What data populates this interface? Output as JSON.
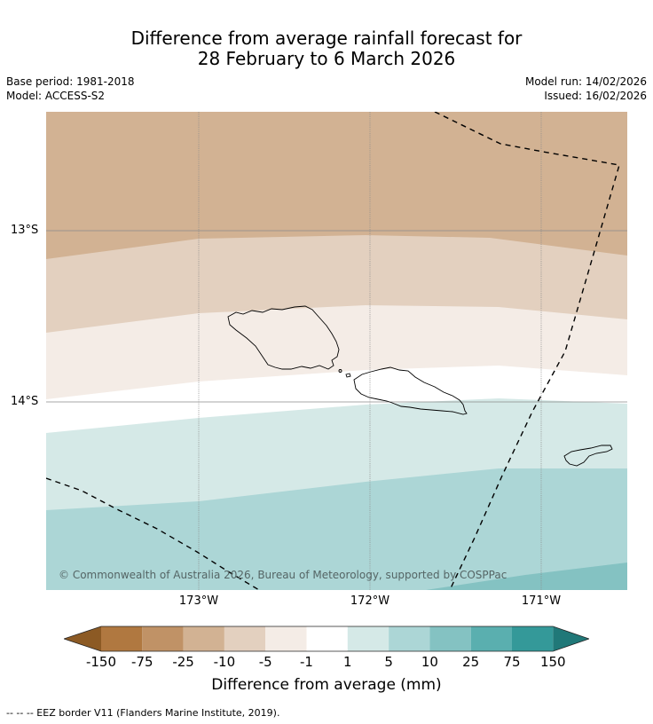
{
  "header": {
    "title_line1": "Difference from average rainfall forecast for",
    "title_line2": "28 February to 6 March 2026",
    "base_period": "Base period: 1981-2018",
    "model": "Model: ACCESS-S2",
    "model_run": "Model run: 14/02/2026",
    "issued": "Issued: 16/02/2026"
  },
  "map": {
    "lat_labels": [
      "13°S",
      "14°S"
    ],
    "lon_labels": [
      "173°W",
      "172°W",
      "171°W"
    ],
    "copyright": "© Commonwealth of Australia 2026, Bureau of Meteorology, supported by COSPPac",
    "colors": {
      "dry_25": "#d2b293",
      "dry_10": "#e3d0bf",
      "dry_5": "#f4ece6",
      "neutral": "#ffffff",
      "wet_5": "#d5e9e7",
      "wet_10": "#acd6d6",
      "wet_25": "#84c2c2"
    }
  },
  "colorbar": {
    "ticks": [
      "-150",
      "-75",
      "-25",
      "-10",
      "-5",
      "-1",
      "1",
      "5",
      "10",
      "25",
      "75",
      "150"
    ],
    "colors": [
      "#8c5a24",
      "#b07840",
      "#c09266",
      "#d2b293",
      "#e3d0bf",
      "#f4ece6",
      "#ffffff",
      "#d5e9e7",
      "#acd6d6",
      "#84c2c2",
      "#5aafaf",
      "#349999",
      "#207878"
    ],
    "label": "Difference from average (mm)"
  },
  "legend": {
    "eez_text": "--  --  -- EEZ border V11 (Flanders Marine Institute, 2019)."
  }
}
